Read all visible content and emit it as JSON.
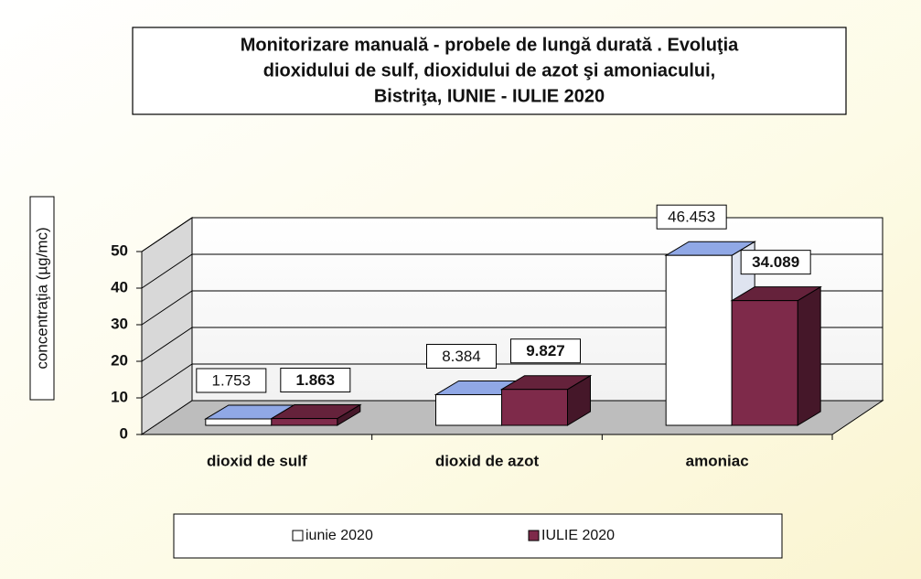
{
  "chart_data": {
    "type": "bar",
    "title": [
      "Monitorizare manuală - probele de lungă durată . Evoluţia",
      "dioxidului de sulf, dioxidului de azot şi amoniacului,",
      "Bistriţa,  IUNIE  - IULIE 2020"
    ],
    "y_label": "concentraţia (µg/mc)",
    "categories": [
      "dioxid de sulf",
      "dioxid de azot",
      "amoniac"
    ],
    "series": [
      {
        "name": "iunie 2020",
        "color": "#ffffff",
        "values": [
          1.753,
          8.384,
          46.453
        ]
      },
      {
        "name": "IULIE 2020",
        "color": "#7e2a4a",
        "values": [
          1.863,
          9.827,
          34.089
        ]
      }
    ],
    "ylim": [
      0,
      50
    ],
    "yticks": [
      0,
      10,
      20,
      30,
      40,
      50
    ],
    "grid": true,
    "legend": "bottom"
  }
}
